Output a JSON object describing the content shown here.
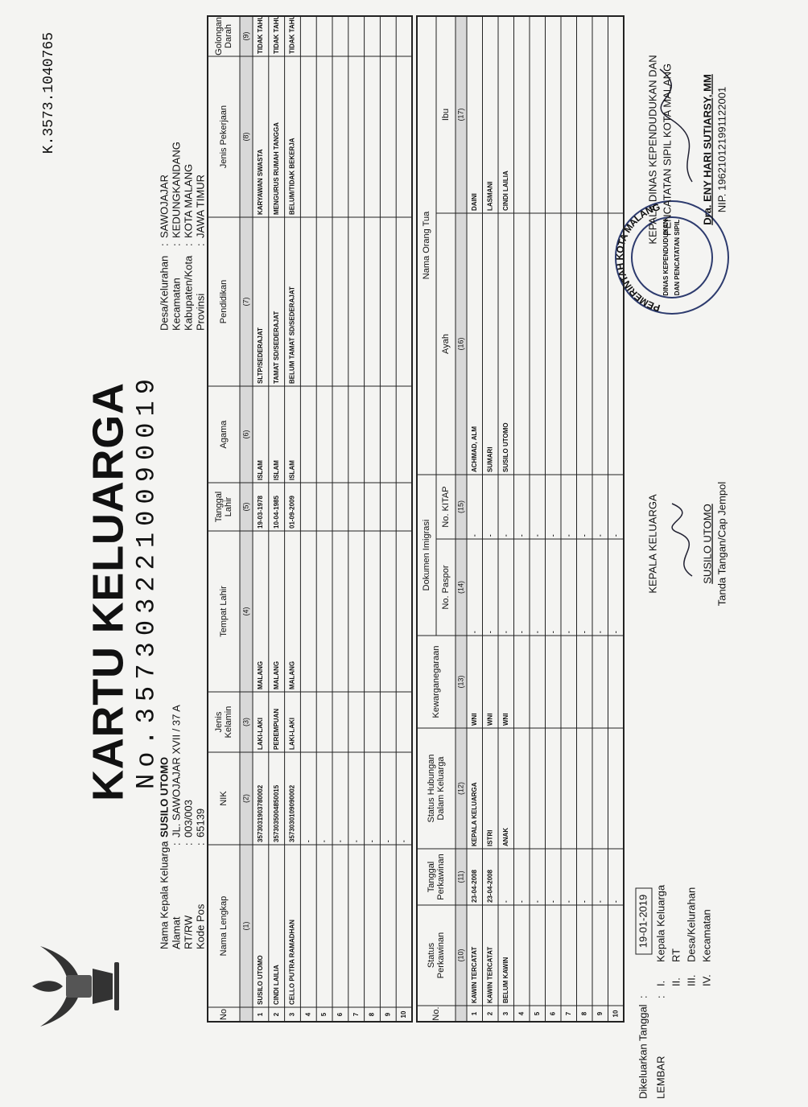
{
  "header": {
    "code": "K.3573.1040765",
    "title": "KARTU KELUARGA",
    "number": "No.3573032210090019"
  },
  "info": {
    "separator": ":",
    "left": [
      {
        "label": "Nama Kepala Keluarga",
        "value": "SUSILO UTOMO"
      },
      {
        "label": "Alamat",
        "value": "JL. SAWOJAJAR XVII / 37 A"
      },
      {
        "label": "RT/RW",
        "value": "003/003"
      },
      {
        "label": "Kode Pos",
        "value": "65139"
      }
    ],
    "right": [
      {
        "label": "Desa/Kelurahan",
        "value": "SAWOJAJAR"
      },
      {
        "label": "Kecamatan",
        "value": "KEDUNGKANDANG"
      },
      {
        "label": "Kabupaten/Kota",
        "value": "KOTA MALANG"
      },
      {
        "label": "Provinsi",
        "value": "JAWA TIMUR"
      }
    ]
  },
  "table1": {
    "columns": [
      {
        "label": [
          "No"
        ]
      },
      {
        "label": [
          "Nama Lengkap"
        ],
        "num": "(1)"
      },
      {
        "label": [
          "NIK"
        ],
        "num": "(2)"
      },
      {
        "label": [
          "Jenis",
          "Kelamin"
        ],
        "num": "(3)"
      },
      {
        "label": [
          "Tempat Lahir"
        ],
        "num": "(4)"
      },
      {
        "label": [
          "Tanggal",
          "Lahir"
        ],
        "num": "(5)"
      },
      {
        "label": [
          "Agama"
        ],
        "num": "(6)"
      },
      {
        "label": [
          "Pendidikan"
        ],
        "num": "(7)"
      },
      {
        "label": [
          "Jenis Pekerjaan"
        ],
        "num": "(8)"
      },
      {
        "label": [
          "Golongan",
          "Darah"
        ],
        "num": "(9)"
      }
    ],
    "rows": [
      [
        "1",
        "SUSILO UTOMO",
        "3573031903780002",
        "LAKI-LAKI",
        "MALANG",
        "19-03-1978",
        "ISLAM",
        "SLTP/SEDERAJAT",
        "KARYAWAN SWASTA",
        "TIDAK TAHU"
      ],
      [
        "2",
        "CINDI LAILIA",
        "3573035004850015",
        "PEREMPUAN",
        "MALANG",
        "10-04-1985",
        "ISLAM",
        "TAMAT SD/SEDERAJAT",
        "MENGURUS RUMAH TANGGA",
        "TIDAK TAHU"
      ],
      [
        "3",
        "CELLO PUTRA RAMADHAN",
        "3573030109090002",
        "LAKI-LAKI",
        "MALANG",
        "01-09-2009",
        "ISLAM",
        "BELUM TAMAT SD/SEDERAJAT",
        "BELUM/TIDAK BEKERJA",
        "TIDAK TAHU"
      ],
      [
        "4",
        null,
        "-",
        null,
        null,
        null,
        null,
        null,
        null,
        null
      ],
      [
        "5",
        null,
        "-",
        null,
        null,
        null,
        null,
        null,
        null,
        null
      ],
      [
        "6",
        null,
        "-",
        null,
        null,
        null,
        null,
        null,
        null,
        null
      ],
      [
        "7",
        null,
        "-",
        null,
        null,
        null,
        null,
        null,
        null,
        null
      ],
      [
        "8",
        null,
        "-",
        null,
        null,
        null,
        null,
        null,
        null,
        null
      ],
      [
        "9",
        null,
        "-",
        null,
        null,
        null,
        null,
        null,
        null,
        null
      ],
      [
        "10",
        null,
        "-",
        null,
        null,
        null,
        null,
        null,
        null,
        null
      ]
    ]
  },
  "table2": {
    "columns": [
      {
        "label": [
          "No."
        ]
      },
      {
        "label": [
          "Status",
          "Perkawinan"
        ],
        "num": "(10)"
      },
      {
        "label": [
          "Tanggal",
          "Perkawinan"
        ],
        "num": "(11)"
      },
      {
        "label": [
          "Status Hubungan",
          "Dalam Keluarga"
        ],
        "num": "(12)"
      },
      {
        "label": [
          "Kewarganegaraan"
        ],
        "num": "(13)"
      },
      {
        "label": [
          "Dokumen Imigrasi"
        ],
        "sub": [
          {
            "label": [
              "No. Paspor"
            ],
            "num": "(14)"
          },
          {
            "label": [
              "No. KITAP"
            ],
            "num": "(15)"
          }
        ]
      },
      {
        "label": [
          "Nama Orang Tua"
        ],
        "sub": [
          {
            "label": [
              "Ayah"
            ],
            "num": "(16)"
          },
          {
            "label": [
              "Ibu"
            ],
            "num": "(17)"
          }
        ]
      }
    ],
    "rows": [
      [
        "1",
        "KAWIN TERCATAT",
        "23-04-2008",
        "KEPALA KELUARGA",
        "WNI",
        "-",
        "-",
        "ACHMAD, ALM",
        "DAINI"
      ],
      [
        "2",
        "KAWIN TERCATAT",
        "23-04-2008",
        "ISTRI",
        "WNI",
        "-",
        "-",
        "SUMARI",
        "LASMANI"
      ],
      [
        "3",
        "BELUM KAWIN",
        "-",
        "ANAK",
        "WNI",
        "-",
        "-",
        "SUSILO UTOMO",
        "CINDI LAILIA"
      ],
      [
        "4",
        null,
        "-",
        null,
        null,
        "-",
        "-",
        null,
        null
      ],
      [
        "5",
        null,
        "-",
        null,
        null,
        "-",
        "-",
        null,
        null
      ],
      [
        "6",
        null,
        "-",
        null,
        null,
        "-",
        "-",
        null,
        null
      ],
      [
        "7",
        null,
        "-",
        null,
        null,
        "-",
        "-",
        null,
        null
      ],
      [
        "8",
        null,
        "-",
        null,
        null,
        "-",
        "-",
        null,
        null
      ],
      [
        "9",
        null,
        "-",
        null,
        null,
        "-",
        "-",
        null,
        null
      ],
      [
        "10",
        null,
        "-",
        null,
        null,
        "-",
        "-",
        null,
        null
      ]
    ]
  },
  "footer": {
    "issued_label": "Dikeluarkan Tanggal",
    "issued_date": "19-01-2019",
    "sheet_label": "LEMBAR",
    "sheets": [
      {
        "roman": "I.",
        "name": "Kepala Keluarga"
      },
      {
        "roman": "II.",
        "name": "RT"
      },
      {
        "roman": "III.",
        "name": "Desa/Kelurahan"
      },
      {
        "roman": "IV.",
        "name": "Kecamatan"
      }
    ],
    "head_title": "KEPALA KELUARGA",
    "head_name": "SUSILO UTOMO",
    "head_caption": "Tanda Tangan/Cap Jempol",
    "official_title": [
      "KEPALA DINAS KEPENDUDUKAN DAN",
      "PENCATATAN SIPIL KOTA MALANG"
    ],
    "official_name": "Dra. ENY HARI SUTIARSY, MM",
    "official_nip": "NIP. 196210121991122001",
    "stamp": {
      "ring": "PEMERINTAH KOTA MALANG",
      "center": [
        "DINAS KEPENDUDUKAN",
        "DAN PENCATATAN SIPIL"
      ]
    }
  }
}
